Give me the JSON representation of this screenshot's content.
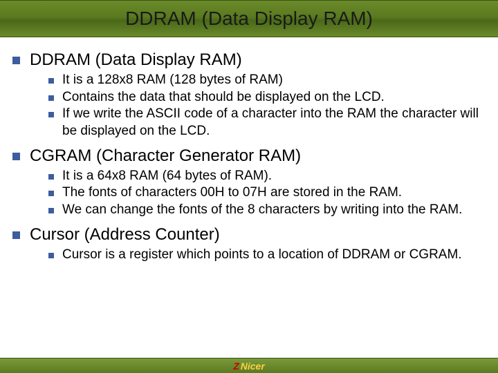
{
  "title": "DDRAM (Data Display RAM)",
  "colors": {
    "bullet": "#3d5d9e",
    "header_gradient_top": "#6a8a2a",
    "header_gradient_mid": "#4a6818",
    "footer_gradient_top": "#7a9a3a",
    "footer_gradient_bot": "#5a7a1f",
    "title_text": "#1a1a1a",
    "body_text": "#000000",
    "logo_z": "#cc0000",
    "logo_nicer": "#ffd040"
  },
  "typography": {
    "title_fontsize": 28,
    "lvl1_fontsize": 24,
    "lvl2_fontsize": 19,
    "font_family": "Verdana"
  },
  "sections": [
    {
      "heading": "DDRAM (Data Display RAM)",
      "items": [
        "It is a 128x8 RAM (128 bytes of RAM)",
        "Contains the data that should be displayed on the LCD.",
        "If we write the ASCII code of a character into the RAM the character will be displayed on the LCD."
      ]
    },
    {
      "heading": "CGRAM (Character Generator RAM)",
      "items": [
        "It is a 64x8 RAM (64 bytes of RAM).",
        "The fonts of characters 00H to 07H are stored in the RAM.",
        "We can change the fonts of the 8 characters by writing into the RAM."
      ]
    },
    {
      "heading": "Cursor  (Address Counter)",
      "items": [
        "Cursor is a register which points to a location of DDRAM or CGRAM."
      ]
    }
  ],
  "footer": {
    "logo_z": "Z",
    "logo_text": "Nicer"
  }
}
